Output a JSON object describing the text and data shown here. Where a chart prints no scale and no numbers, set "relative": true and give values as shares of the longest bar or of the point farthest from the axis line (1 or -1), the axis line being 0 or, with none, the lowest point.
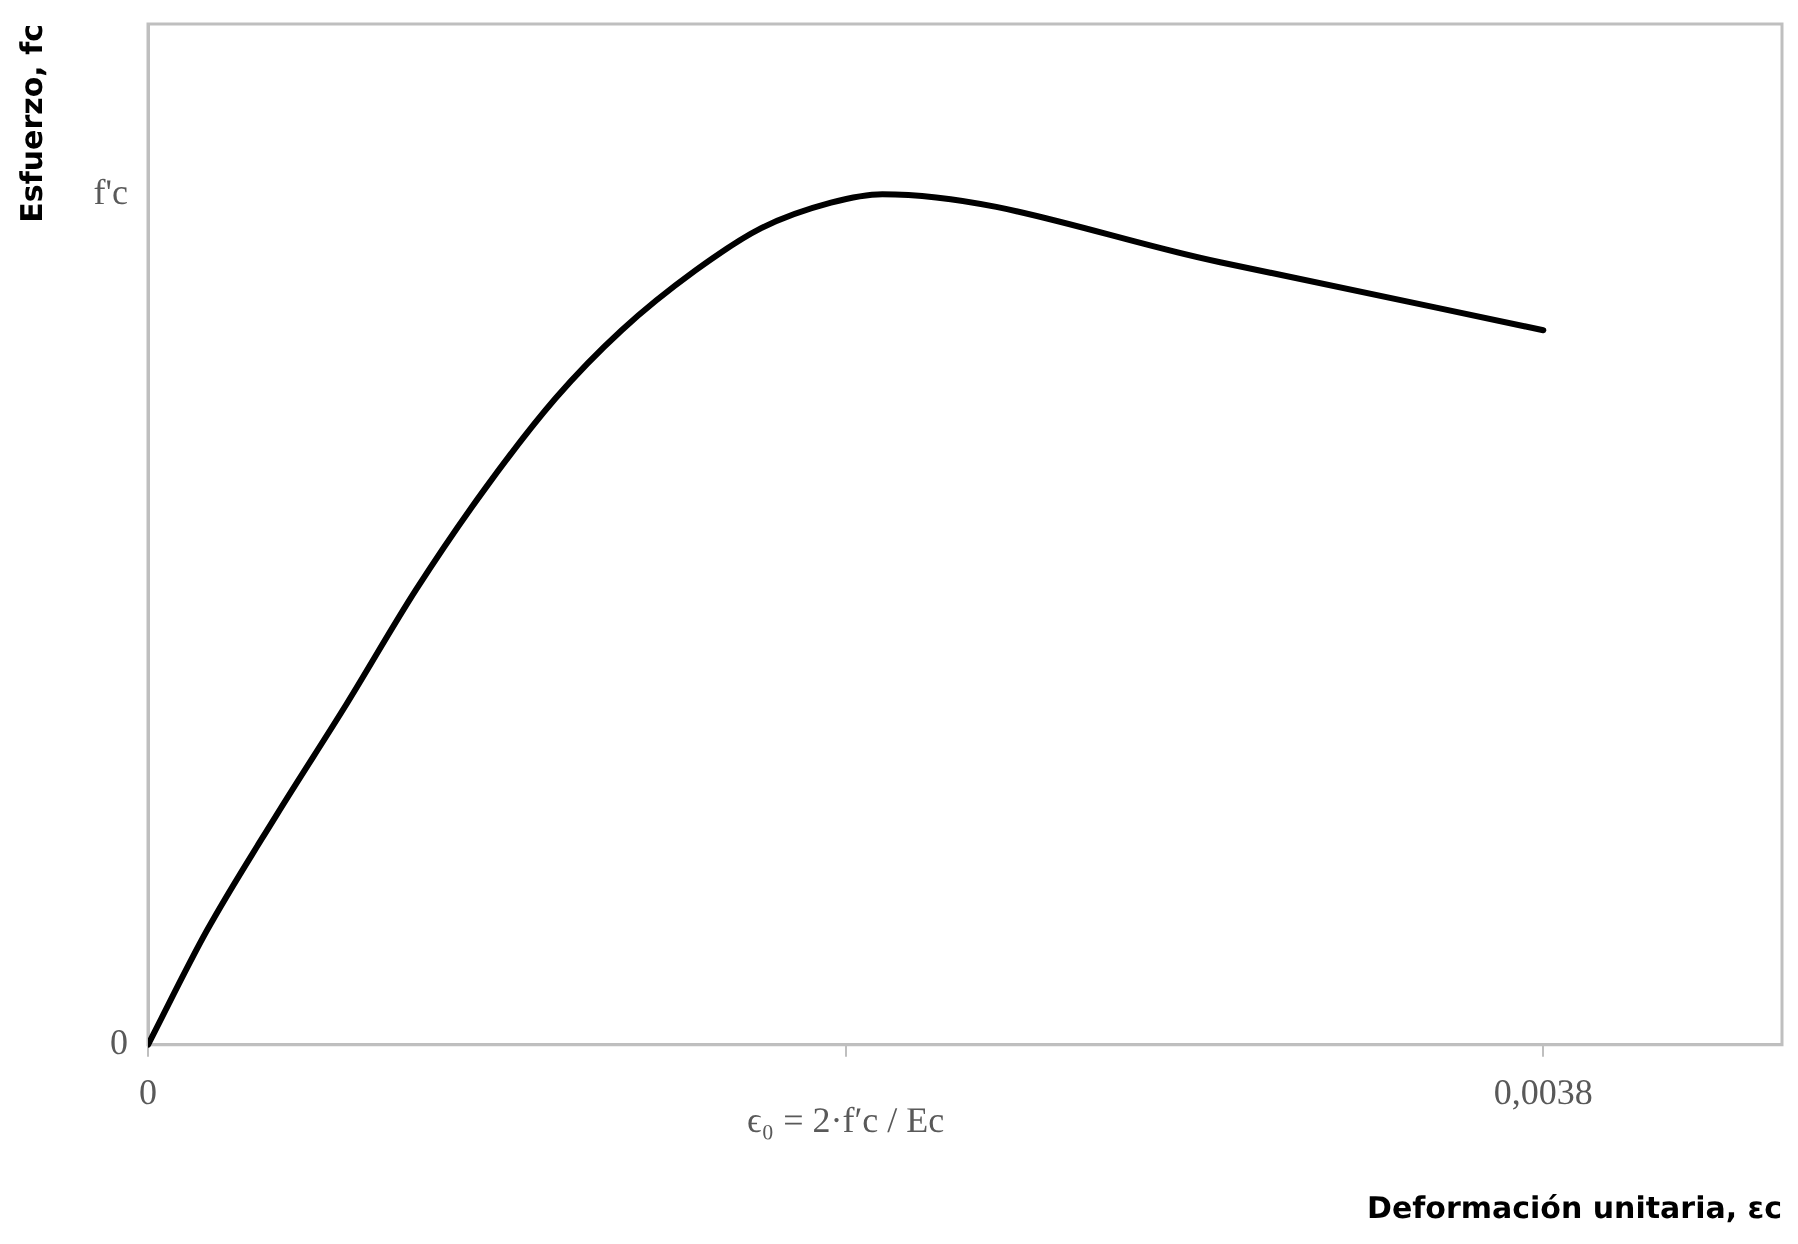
{
  "chart_data": {
    "type": "line",
    "xlabel": "Deformación unitaria, εc",
    "ylabel": "Esfuerzo, fc",
    "xlim": [
      0,
      0.00445
    ],
    "xticks": [
      0,
      {
        "value": 0.0019,
        "label": null
      },
      {
        "value": 0.0038,
        "label": "0,0038"
      }
    ],
    "relative": true,
    "annotations": [
      "ϵ₀ = 2·f′c / Ec",
      "f'c",
      "0"
    ],
    "series": [
      {
        "color": "#000000",
        "x": [
          0,
          0.00016,
          0.00035,
          0.00054,
          0.00073,
          0.00092,
          0.00111,
          0.00129,
          0.00149,
          0.00167,
          0.00186,
          0.002,
          0.00292,
          0.0038
        ],
        "values": [
          0,
          0.134,
          0.27,
          0.4,
          0.535,
          0.655,
          0.76,
          0.84,
          0.91,
          0.96,
          0.99,
          1.0,
          0.92,
          0.84
        ]
      }
    ],
    "marker": "none",
    "line_style": "solid",
    "legend": false
  }
}
